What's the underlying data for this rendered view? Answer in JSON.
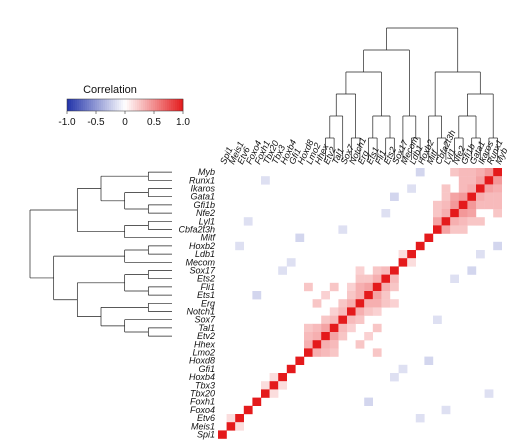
{
  "chart_data": {
    "type": "heatmap",
    "legend": {
      "title": "Correlation",
      "ticks": [
        "-1.0",
        "-0.5",
        "0",
        "0.5",
        "1.0"
      ],
      "range": [
        -1.0,
        1.0
      ]
    },
    "colors": {
      "low": "#2233aa",
      "mid": "#ffffff",
      "high": "#e41a1c"
    },
    "genes": [
      "Myb",
      "Runx1",
      "Ikaros",
      "Gata1",
      "Gfi1b",
      "Nfe2",
      "Lyl1",
      "Cbfa2t3h",
      "Mitf",
      "Hoxb2",
      "Ldb1",
      "Mecom",
      "Sox17",
      "Ets2",
      "Fli1",
      "Ets1",
      "Erg",
      "Notch1",
      "Sox7",
      "Tal1",
      "Etv2",
      "Hhex",
      "Lmo2",
      "Hoxd8",
      "Gfi1",
      "Hoxb4",
      "Tbx3",
      "Tbx20",
      "Foxh1",
      "Foxo4",
      "Etv6",
      "Meis1",
      "Spi1"
    ],
    "notable_correlations": [
      {
        "a": "Myb",
        "b": "Runx1",
        "value": 0.45
      },
      {
        "a": "Myb",
        "b": "Ikaros",
        "value": 0.35
      },
      {
        "a": "Myb",
        "b": "Gata1",
        "value": 0.3
      },
      {
        "a": "Myb",
        "b": "Gfi1b",
        "value": 0.3
      },
      {
        "a": "Myb",
        "b": "Nfe2",
        "value": 0.25
      },
      {
        "a": "Runx1",
        "b": "Ikaros",
        "value": 0.4
      },
      {
        "a": "Runx1",
        "b": "Gata1",
        "value": 0.3
      },
      {
        "a": "Runx1",
        "b": "Gfi1b",
        "value": 0.3
      },
      {
        "a": "Ikaros",
        "b": "Gata1",
        "value": 0.35
      },
      {
        "a": "Ikaros",
        "b": "Gfi1b",
        "value": 0.3
      },
      {
        "a": "Ikaros",
        "b": "Lyl1",
        "value": 0.25
      },
      {
        "a": "Gata1",
        "b": "Gfi1b",
        "value": 0.45
      },
      {
        "a": "Gata1",
        "b": "Nfe2",
        "value": 0.4
      },
      {
        "a": "Gata1",
        "b": "Lyl1",
        "value": 0.25
      },
      {
        "a": "Gfi1b",
        "b": "Nfe2",
        "value": 0.45
      },
      {
        "a": "Gfi1b",
        "b": "Lyl1",
        "value": 0.3
      },
      {
        "a": "Gfi1b",
        "b": "Cbfa2t3h",
        "value": 0.25
      },
      {
        "a": "Nfe2",
        "b": "Lyl1",
        "value": 0.35
      },
      {
        "a": "Nfe2",
        "b": "Cbfa2t3h",
        "value": 0.25
      },
      {
        "a": "Lyl1",
        "b": "Cbfa2t3h",
        "value": 0.4
      },
      {
        "a": "Ldb1",
        "b": "Mecom",
        "value": 0.15
      },
      {
        "a": "Sox17",
        "b": "Ets2",
        "value": 0.3
      },
      {
        "a": "Sox17",
        "b": "Fli1",
        "value": 0.25
      },
      {
        "a": "Sox17",
        "b": "Erg",
        "value": 0.2
      },
      {
        "a": "Ets2",
        "b": "Fli1",
        "value": 0.35
      },
      {
        "a": "Ets2",
        "b": "Ets1",
        "value": 0.25
      },
      {
        "a": "Ets2",
        "b": "Erg",
        "value": 0.25
      },
      {
        "a": "Fli1",
        "b": "Ets1",
        "value": 0.4
      },
      {
        "a": "Fli1",
        "b": "Erg",
        "value": 0.35
      },
      {
        "a": "Fli1",
        "b": "Notch1",
        "value": 0.2
      },
      {
        "a": "Ets1",
        "b": "Erg",
        "value": 0.35
      },
      {
        "a": "Ets1",
        "b": "Notch1",
        "value": 0.25
      },
      {
        "a": "Erg",
        "b": "Notch1",
        "value": 0.35
      },
      {
        "a": "Erg",
        "b": "Sox7",
        "value": 0.25
      },
      {
        "a": "Notch1",
        "b": "Sox7",
        "value": 0.3
      },
      {
        "a": "Notch1",
        "b": "Tal1",
        "value": 0.2
      },
      {
        "a": "Sox7",
        "b": "Tal1",
        "value": 0.3
      },
      {
        "a": "Sox7",
        "b": "Etv2",
        "value": 0.25
      },
      {
        "a": "Tal1",
        "b": "Etv2",
        "value": 0.4
      },
      {
        "a": "Tal1",
        "b": "Hhex",
        "value": 0.3
      },
      {
        "a": "Tal1",
        "b": "Lmo2",
        "value": 0.25
      },
      {
        "a": "Etv2",
        "b": "Hhex",
        "value": 0.35
      },
      {
        "a": "Etv2",
        "b": "Lmo2",
        "value": 0.3
      },
      {
        "a": "Hhex",
        "b": "Lmo2",
        "value": 0.35
      },
      {
        "a": "Hhex",
        "b": "Erg",
        "value": 0.25
      },
      {
        "a": "Lmo2",
        "b": "Fli1",
        "value": 0.25
      },
      {
        "a": "Tal1",
        "b": "Fli1",
        "value": 0.25
      },
      {
        "a": "Etv2",
        "b": "Ets1",
        "value": 0.2
      },
      {
        "a": "Hoxb4",
        "b": "Tbx3",
        "value": 0.15
      },
      {
        "a": "Tbx3",
        "b": "Tbx20",
        "value": 0.15
      },
      {
        "a": "Etv6",
        "b": "Meis1",
        "value": 0.15
      },
      {
        "a": "Myb",
        "b": "Hoxb2",
        "value": -0.2
      },
      {
        "a": "Ikaros",
        "b": "Ldb1",
        "value": -0.15
      },
      {
        "a": "Gata1",
        "b": "Sox17",
        "value": -0.2
      },
      {
        "a": "Nfe2",
        "b": "Ets2",
        "value": -0.15
      },
      {
        "a": "Mitf",
        "b": "Hoxd8",
        "value": -0.2
      },
      {
        "a": "Sox17",
        "b": "Hoxb4",
        "value": -0.15
      },
      {
        "a": "Ets1",
        "b": "Foxh1",
        "value": -0.2
      },
      {
        "a": "Cbfa2t3h",
        "b": "Sox7",
        "value": -0.15
      },
      {
        "a": "Runx1",
        "b": "Tbx20",
        "value": -0.15
      },
      {
        "a": "Lyl1",
        "b": "Foxo4",
        "value": -0.15
      },
      {
        "a": "Gfi1",
        "b": "Mecom",
        "value": -0.15
      },
      {
        "a": "Hoxb2",
        "b": "Etv6",
        "value": -0.15
      }
    ]
  }
}
